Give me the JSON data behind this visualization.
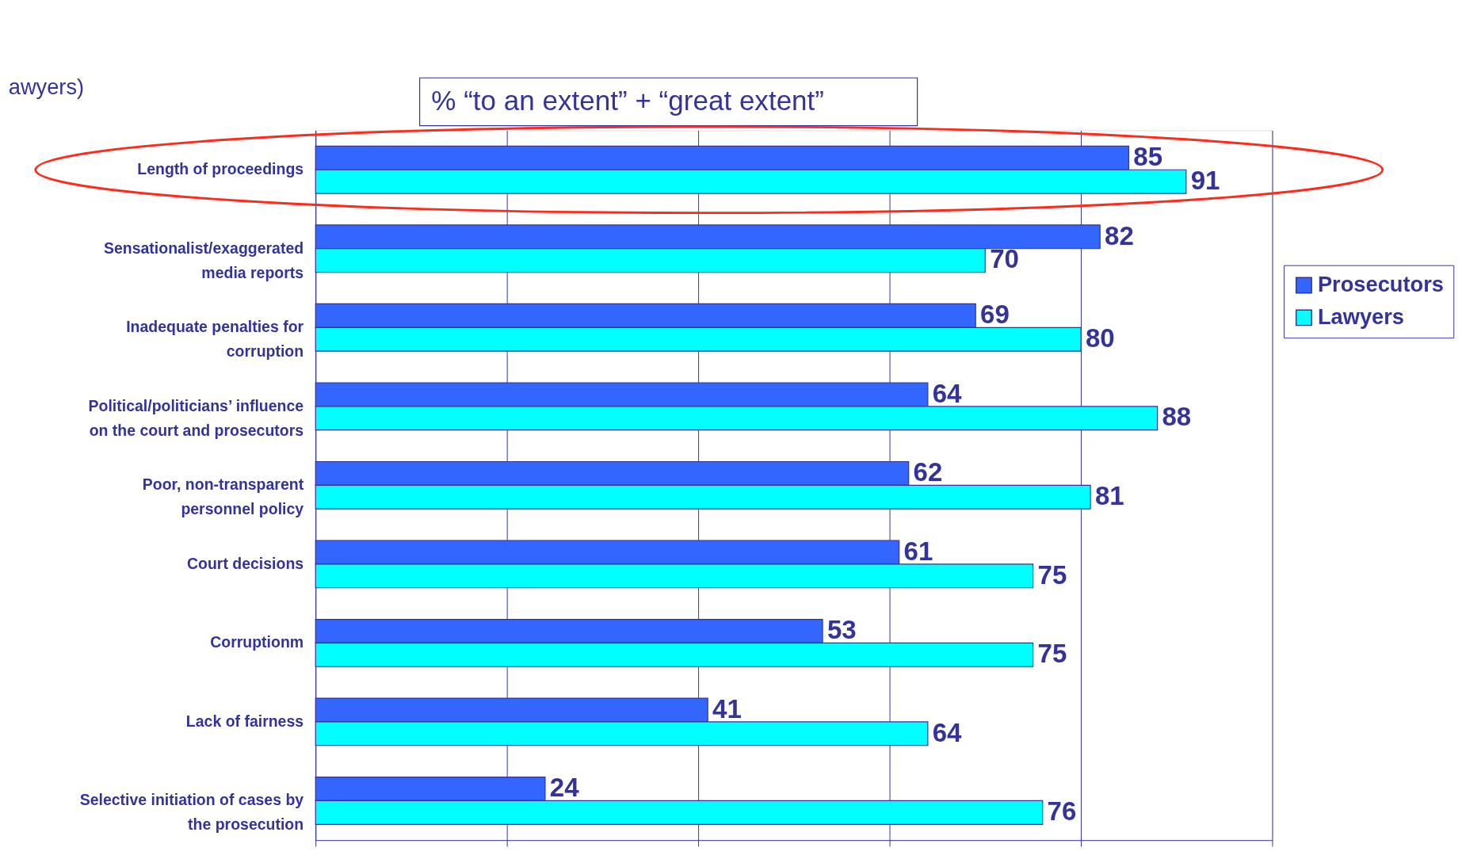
{
  "chart_data": {
    "type": "bar",
    "orientation": "horizontal",
    "categories": [
      "Length of proceedings",
      "Sensationalist/exaggerated\nmedia reports",
      "Inadequate penalties for\ncorruption",
      "Political/politicians’ influence\non the court and prosecutors",
      "Poor, non-transparent\npersonnel policy",
      "Court decisions",
      "Corruptionm",
      "Lack of fairness",
      "Selective initiation of cases by\nthe prosecution"
    ],
    "series": [
      {
        "name": "Prosecutors",
        "color": "#3366ff",
        "values": [
          85,
          82,
          69,
          64,
          62,
          61,
          53,
          41,
          24
        ]
      },
      {
        "name": "Lawyers",
        "color": "#00ffff",
        "values": [
          91,
          70,
          80,
          88,
          81,
          75,
          75,
          64,
          76
        ]
      }
    ],
    "xlim": [
      0,
      100
    ],
    "xticks": [
      {
        "value": 0,
        "label": null
      },
      {
        "value": 20,
        "label": null
      },
      {
        "value": 40,
        "label": null
      },
      {
        "value": 60,
        "label": null
      },
      {
        "value": 80,
        "label": null
      },
      {
        "value": 100,
        "label": null
      }
    ],
    "tick_labels": "y",
    "grid": "x",
    "legend": "right",
    "data_labels": true,
    "annotations": [
      "awyers)",
      "% “to an extent” + “great extent”"
    ]
  }
}
